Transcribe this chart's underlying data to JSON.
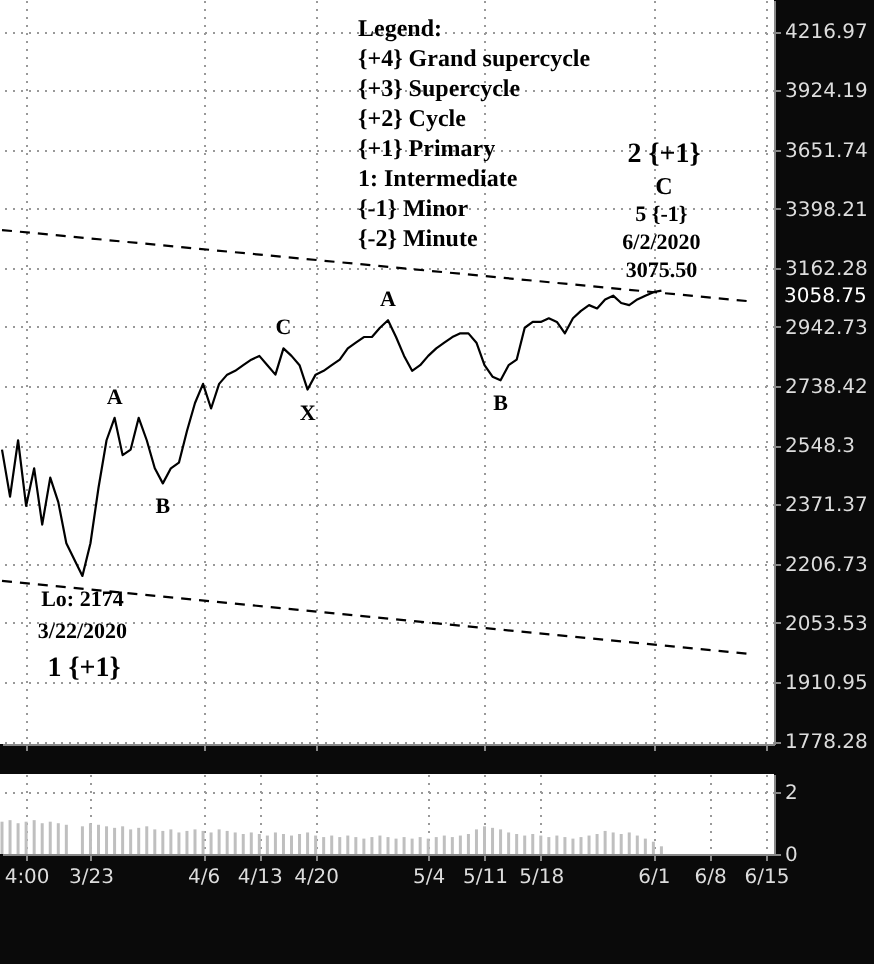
{
  "chart_data": [
    {
      "type": "line",
      "log": true,
      "grid": true,
      "tick_labels": "y",
      "xlim": [
        "2020-03-12",
        "2020-06-16"
      ],
      "ylim": [
        1772,
        4380
      ],
      "yticks": [
        1778.28,
        1910.95,
        2053.53,
        2206.73,
        2371.37,
        2548.3,
        2738.42,
        2942.73,
        3162.28,
        3398.21,
        3651.74,
        3924.19,
        4216.97
      ],
      "xticks": [
        {
          "value": "2020-03-15",
          "label": null
        },
        {
          "value": "2020-03-23",
          "label": null
        },
        {
          "value": "2020-04-06",
          "label": null
        },
        {
          "value": "2020-04-13",
          "label": null
        },
        {
          "value": "2020-04-20",
          "label": null
        },
        {
          "value": "2020-05-04",
          "label": null
        },
        {
          "value": "2020-05-11",
          "label": null
        },
        {
          "value": "2020-05-18",
          "label": null
        },
        {
          "value": "2020-06-01",
          "label": null
        },
        {
          "value": "2020-06-08",
          "label": null
        },
        {
          "value": "2020-06-15",
          "label": null
        }
      ],
      "series": [
        {
          "color": "#000000",
          "line_style": "solid",
          "x": [
            "2020-03-12",
            "2020-03-13",
            "2020-03-14",
            "2020-03-15",
            "2020-03-16",
            "2020-03-17",
            "2020-03-18",
            "2020-03-19",
            "2020-03-20",
            "2020-03-22",
            "2020-03-23",
            "2020-03-24",
            "2020-03-25",
            "2020-03-26",
            "2020-03-27",
            "2020-03-28",
            "2020-03-29",
            "2020-03-30",
            "2020-03-31",
            "2020-04-01",
            "2020-04-02",
            "2020-04-03",
            "2020-04-04",
            "2020-04-05",
            "2020-04-06",
            "2020-04-07",
            "2020-04-08",
            "2020-04-09",
            "2020-04-10",
            "2020-04-11",
            "2020-04-12",
            "2020-04-13",
            "2020-04-14",
            "2020-04-15",
            "2020-04-16",
            "2020-04-17",
            "2020-04-18",
            "2020-04-19",
            "2020-04-20",
            "2020-04-21",
            "2020-04-22",
            "2020-04-23",
            "2020-04-24",
            "2020-04-25",
            "2020-04-26",
            "2020-04-27",
            "2020-04-28",
            "2020-04-29",
            "2020-04-30",
            "2020-05-01",
            "2020-05-02",
            "2020-05-03",
            "2020-05-04",
            "2020-05-05",
            "2020-05-06",
            "2020-05-07",
            "2020-05-08",
            "2020-05-09",
            "2020-05-10",
            "2020-05-11",
            "2020-05-12",
            "2020-05-13",
            "2020-05-14",
            "2020-05-15",
            "2020-05-16",
            "2020-05-17",
            "2020-05-18",
            "2020-05-19",
            "2020-05-20",
            "2020-05-21",
            "2020-05-22",
            "2020-05-23",
            "2020-05-24",
            "2020-05-25",
            "2020-05-26",
            "2020-05-27",
            "2020-05-28",
            "2020-05-29",
            "2020-05-30",
            "2020-05-31",
            "2020-06-01",
            "2020-06-02"
          ],
          "values": [
            2535,
            2394,
            2564,
            2367,
            2478,
            2314,
            2450,
            2378,
            2262,
            2174,
            2262,
            2420,
            2564,
            2635,
            2518,
            2535,
            2635,
            2564,
            2478,
            2433,
            2478,
            2495,
            2593,
            2683,
            2746,
            2665,
            2746,
            2777,
            2790,
            2809,
            2828,
            2841,
            2809,
            2777,
            2867,
            2841,
            2809,
            2727,
            2777,
            2790,
            2809,
            2828,
            2867,
            2887,
            2907,
            2907,
            2940,
            2967,
            2907,
            2841,
            2790,
            2809,
            2841,
            2867,
            2887,
            2907,
            2920,
            2920,
            2887,
            2809,
            2770,
            2758,
            2809,
            2828,
            2940,
            2961,
            2961,
            2974,
            2961,
            2920,
            2974,
            3001,
            3022,
            3010,
            3043,
            3057,
            3030,
            3022,
            3043,
            3057,
            3070,
            3075.5
          ]
        },
        {
          "type": "line",
          "color": "#000000",
          "line_style": "dashed",
          "x": [
            "2020-03-12",
            "2020-06-13"
          ],
          "values": [
            3311,
            3036
          ]
        },
        {
          "type": "line",
          "color": "#000000",
          "line_style": "dashed",
          "x": [
            "2020-03-12",
            "2020-06-13"
          ],
          "values": [
            2161,
            1977
          ]
        }
      ],
      "annotations": [
        "Legend:",
        "{+4}  Grand supercycle",
        "{+3} Supercycle",
        "{+2} Cycle",
        "{+1} Primary",
        "1: Intermediate",
        "{-1} Minor",
        "{-2} Minute",
        "2 {+1}",
        "C",
        "1 {+1}",
        "3058.75",
        {
          "text": "5 {-1}",
          "x": "2020-06-02",
          "y": 3075.5
        },
        {
          "text": "6/2/2020",
          "x": "2020-06-02",
          "y": 3075.5
        },
        {
          "text": "3075.50",
          "x": "2020-06-02",
          "y": 3075.5
        },
        {
          "text": "Lo: 2174",
          "x": "2020-03-22",
          "y": 2174
        },
        {
          "text": "3/22/2020",
          "x": "2020-03-22",
          "y": 2174
        },
        {
          "text": "A",
          "x": "2020-03-26",
          "y": 2635
        },
        {
          "text": "B",
          "x": "2020-04-01",
          "y": 2433
        },
        {
          "text": "C",
          "x": "2020-04-16",
          "y": 2867
        },
        {
          "text": "X",
          "x": "2020-04-19",
          "y": 2727
        },
        {
          "text": "A",
          "x": "2020-04-29",
          "y": 2967
        },
        {
          "text": "B",
          "x": "2020-05-13",
          "y": 2758
        }
      ]
    },
    {
      "type": "bar",
      "grid": true,
      "color": "#bfbfbf",
      "xlim": [
        "2020-03-12",
        "2020-06-16"
      ],
      "ylim": [
        0,
        2.6
      ],
      "yticks": [
        0,
        2
      ],
      "xticks": [
        {
          "value": "2020-03-15",
          "label": "4:00"
        },
        {
          "value": "2020-03-23",
          "label": "3/23"
        },
        {
          "value": "2020-04-06",
          "label": "4/6"
        },
        {
          "value": "2020-04-13",
          "label": "4/13"
        },
        {
          "value": "2020-04-20",
          "label": "4/20"
        },
        {
          "value": "2020-05-04",
          "label": "5/4"
        },
        {
          "value": "2020-05-11",
          "label": "5/11"
        },
        {
          "value": "2020-05-18",
          "label": "5/18"
        },
        {
          "value": "2020-06-01",
          "label": "6/1"
        },
        {
          "value": "2020-06-08",
          "label": "6/8"
        },
        {
          "value": "2020-06-15",
          "label": "6/15"
        }
      ],
      "x": [
        "2020-03-12",
        "2020-03-13",
        "2020-03-14",
        "2020-03-15",
        "2020-03-16",
        "2020-03-17",
        "2020-03-18",
        "2020-03-19",
        "2020-03-20",
        "2020-03-22",
        "2020-03-23",
        "2020-03-24",
        "2020-03-25",
        "2020-03-26",
        "2020-03-27",
        "2020-03-28",
        "2020-03-29",
        "2020-03-30",
        "2020-03-31",
        "2020-04-01",
        "2020-04-02",
        "2020-04-03",
        "2020-04-04",
        "2020-04-05",
        "2020-04-06",
        "2020-04-07",
        "2020-04-08",
        "2020-04-09",
        "2020-04-10",
        "2020-04-11",
        "2020-04-12",
        "2020-04-13",
        "2020-04-14",
        "2020-04-15",
        "2020-04-16",
        "2020-04-17",
        "2020-04-18",
        "2020-04-19",
        "2020-04-20",
        "2020-04-21",
        "2020-04-22",
        "2020-04-23",
        "2020-04-24",
        "2020-04-25",
        "2020-04-26",
        "2020-04-27",
        "2020-04-28",
        "2020-04-29",
        "2020-04-30",
        "2020-05-01",
        "2020-05-02",
        "2020-05-03",
        "2020-05-04",
        "2020-05-05",
        "2020-05-06",
        "2020-05-07",
        "2020-05-08",
        "2020-05-09",
        "2020-05-10",
        "2020-05-11",
        "2020-05-12",
        "2020-05-13",
        "2020-05-14",
        "2020-05-15",
        "2020-05-16",
        "2020-05-17",
        "2020-05-18",
        "2020-05-19",
        "2020-05-20",
        "2020-05-21",
        "2020-05-22",
        "2020-05-23",
        "2020-05-24",
        "2020-05-25",
        "2020-05-26",
        "2020-05-27",
        "2020-05-28",
        "2020-05-29",
        "2020-05-30",
        "2020-05-31",
        "2020-06-01",
        "2020-06-02"
      ],
      "values": [
        1.05,
        1.1,
        1.0,
        1.05,
        1.1,
        1.0,
        1.05,
        1.0,
        0.95,
        0.9,
        1.0,
        0.95,
        0.9,
        0.85,
        0.9,
        0.8,
        0.85,
        0.9,
        0.8,
        0.75,
        0.8,
        0.7,
        0.75,
        0.8,
        0.75,
        0.7,
        0.8,
        0.75,
        0.7,
        0.65,
        0.7,
        0.65,
        0.6,
        0.7,
        0.65,
        0.6,
        0.65,
        0.7,
        0.6,
        0.55,
        0.6,
        0.55,
        0.6,
        0.55,
        0.5,
        0.55,
        0.6,
        0.55,
        0.5,
        0.55,
        0.5,
        0.55,
        0.5,
        0.55,
        0.6,
        0.55,
        0.6,
        0.65,
        0.8,
        0.9,
        0.85,
        0.8,
        0.7,
        0.65,
        0.6,
        0.65,
        0.6,
        0.55,
        0.6,
        0.55,
        0.5,
        0.55,
        0.6,
        0.65,
        0.75,
        0.7,
        0.65,
        0.7,
        0.6,
        0.5,
        0.4,
        0.25
      ]
    }
  ]
}
